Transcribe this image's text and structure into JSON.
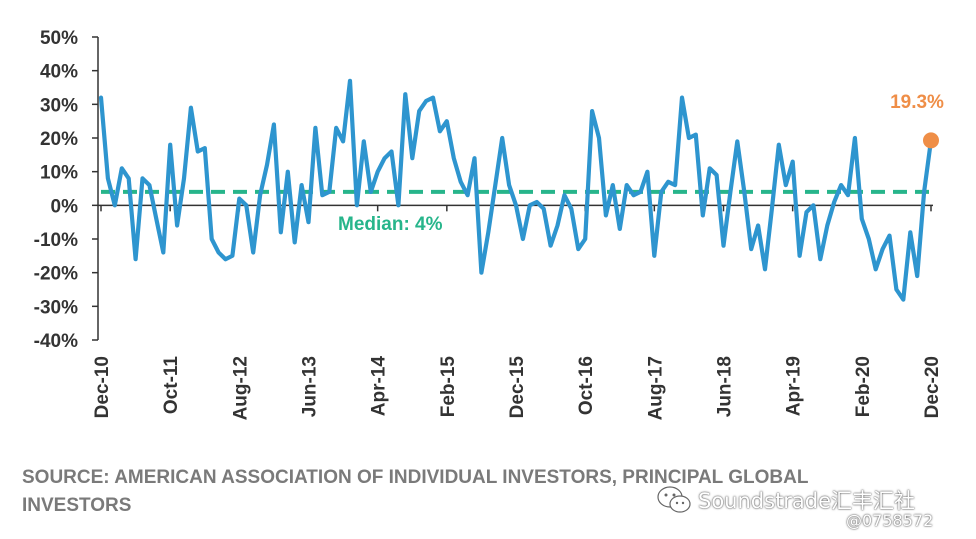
{
  "chart_data": {
    "type": "line",
    "title": "",
    "xlabel": "",
    "ylabel": "",
    "ylim": [
      -40,
      50
    ],
    "y_ticks": [
      "50%",
      "40%",
      "30%",
      "20%",
      "10%",
      "0%",
      "-10%",
      "-20%",
      "-30%",
      "-40%"
    ],
    "x_tick_labels": [
      "Dec-10",
      "Oct-11",
      "Aug-12",
      "Jun-13",
      "Apr-14",
      "Feb-15",
      "Dec-15",
      "Oct-16",
      "Aug-17",
      "Jun-18",
      "Apr-19",
      "Feb-20",
      "Dec-20"
    ],
    "x_unit": "month",
    "x_start": "Dec-10",
    "grid": false,
    "series_color": "#2e95cf",
    "series": [
      {
        "values": [
          32,
          8,
          0,
          11,
          8,
          -16,
          8,
          6,
          -4,
          -14,
          18,
          -6,
          8,
          29,
          16,
          17,
          -10,
          -14,
          -16,
          -15,
          2,
          0,
          -14,
          3,
          12,
          24,
          -8,
          10,
          -11,
          6,
          -5,
          23,
          3,
          4,
          23,
          19,
          37,
          0,
          19,
          4,
          10,
          14,
          16,
          0,
          33,
          14,
          28,
          31,
          32,
          22,
          25,
          14,
          7,
          3,
          14,
          -20,
          -8,
          6,
          20,
          6,
          0,
          -10,
          0,
          1,
          -1,
          -12,
          -6,
          3,
          -1,
          -13,
          -10,
          28,
          20,
          -3,
          6,
          -7,
          6,
          3,
          4,
          10,
          -15,
          4,
          7,
          6,
          32,
          20,
          21,
          -3,
          11,
          9,
          -12,
          4,
          19,
          4,
          -13,
          -6,
          -19,
          -1,
          18,
          6,
          13,
          -15,
          -2,
          0,
          -16,
          -6,
          1,
          6,
          3,
          20,
          -4,
          -10,
          -19,
          -13,
          -9,
          -25,
          -28,
          -8,
          -21,
          4,
          19.3
        ]
      }
    ],
    "median": {
      "value": 4,
      "label": "Median: 4%",
      "color": "#27b58b"
    },
    "last_point": {
      "label": "19.3%",
      "color": "#ef8e47"
    }
  },
  "source": "SOURCE: AMERICAN ASSOCIATION OF INDIVIDUAL INVESTORS, PRINCIPAL GLOBAL INVESTORS",
  "watermark": {
    "text": "Soundstrade汇丰汇社",
    "handle": "@0758572"
  }
}
